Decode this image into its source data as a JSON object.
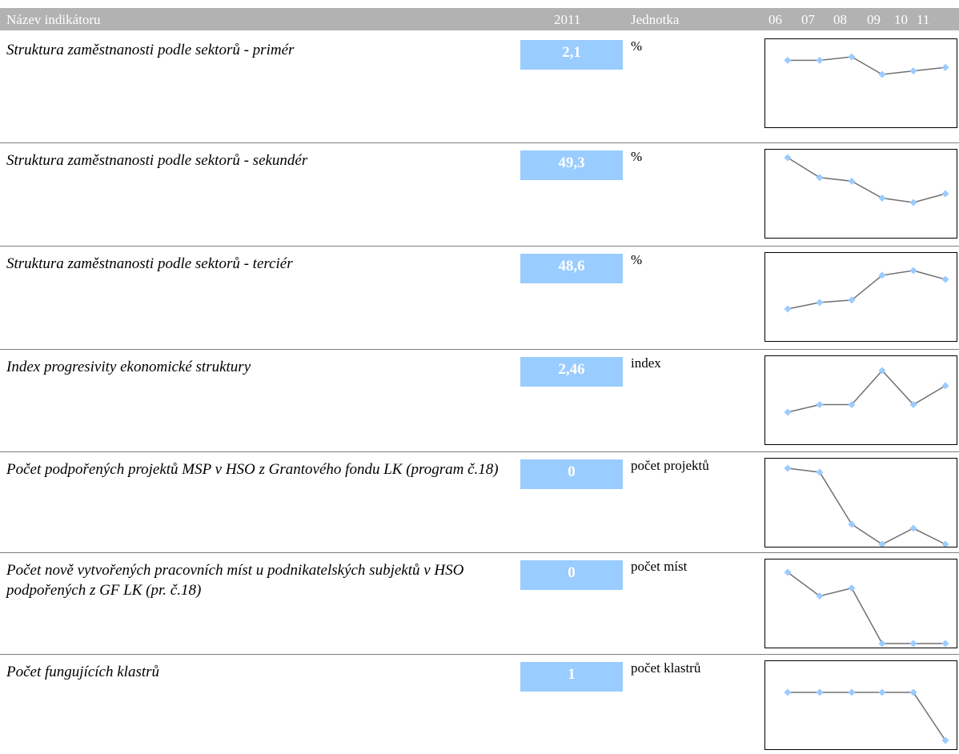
{
  "header": {
    "name": "Název indikátoru",
    "year": "2011",
    "unit": "Jednotka",
    "years": [
      "06",
      "07",
      "08",
      "09",
      "10",
      "11"
    ]
  },
  "colors": {
    "header_bg": "#b2b2b2",
    "value_box": "#99ccff",
    "spark_line": "#707070",
    "spark_marker": "#99ccff"
  },
  "indicators": [
    {
      "name": "Struktura zaměstnanosti podle sektorů - primér",
      "value": "2,1",
      "unit": "%",
      "trend": [
        2.5,
        2.5,
        2.6,
        2.1,
        2.2,
        2.3
      ]
    },
    {
      "name": "Struktura zaměstnanosti podle sektorů - sekundér",
      "value": "49,3",
      "unit": "%",
      "trend": [
        55.0,
        52.3,
        51.8,
        49.5,
        48.9,
        50.1
      ]
    },
    {
      "name": "Struktura zaměstnanosti podle sektorů - terciér",
      "value": "48,6",
      "unit": "%",
      "trend": [
        42.5,
        43.6,
        44.0,
        48.2,
        49.0,
        47.5
      ]
    },
    {
      "name": "Index progresivity ekonomické struktury",
      "value": "2,46",
      "unit": "index",
      "trend": [
        1.0,
        2.0,
        2.0,
        6.5,
        2.0,
        4.5
      ]
    },
    {
      "name": "Počet podpořených projektů MSP v HSO z Grantového fondu LK (program č.18)",
      "value": "0",
      "unit": "počet projektů",
      "trend": [
        10.0,
        9.5,
        3.0,
        0.5,
        2.5,
        0.5
      ]
    },
    {
      "name": "Počet nově vytvořených pracovních míst u podnikatelských subjektů v HSO podpořených z GF LK (pr. č.18)",
      "value": "0",
      "unit": "počet míst",
      "trend": [
        9.0,
        6.0,
        7.0,
        0.0,
        0.0,
        0.0
      ]
    },
    {
      "name": "Počet fungujících klastrů",
      "value": "1",
      "unit": "počet klastrů",
      "trend": [
        5.0,
        5.0,
        5.0,
        5.0,
        5.0,
        1.0
      ]
    }
  ]
}
